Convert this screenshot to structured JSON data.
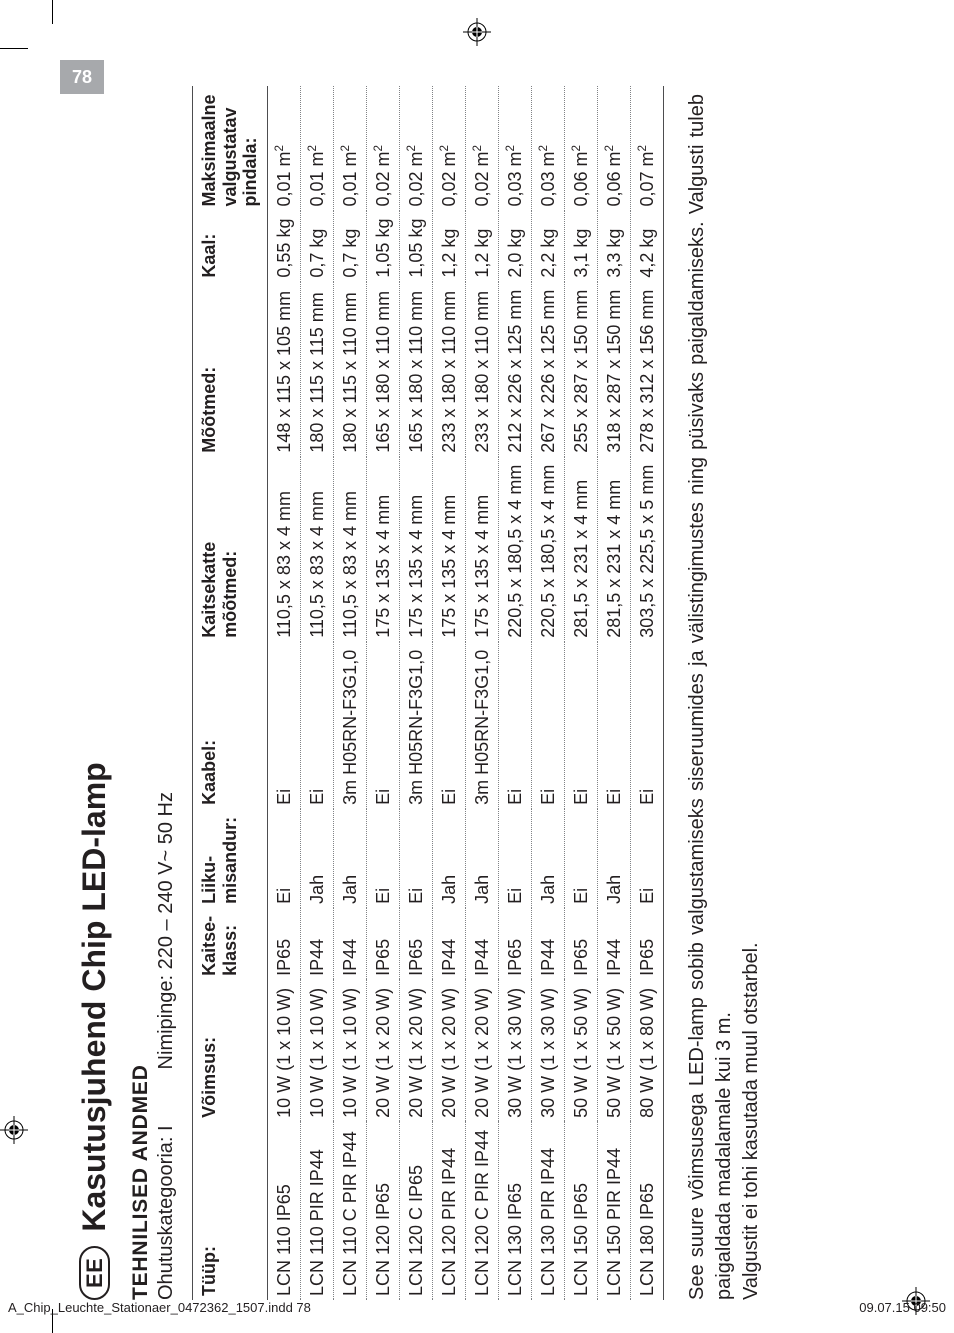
{
  "page_number": "78",
  "footer_left": "A_Chip_Leuchte_Stationaer_0472362_1507.indd   78",
  "footer_right": "09.07.15   09:50",
  "lang_code": "EE",
  "title": "Kasutusjuhend Chip LED-lamp",
  "section_heading": "TEHNILISED ANDMED",
  "safety_label": "Ohutuskategooria: I",
  "voltage_label": "Nimipinge: 220 – 240 V~ 50 Hz",
  "columns": {
    "type": "Tüüp:",
    "power": "Võimsus:",
    "ip": "Kaitse-\nklass:",
    "motion": "Liiku-\nmisandur:",
    "cable": "Kaabel:",
    "cover": "Kaitsekatte\nmõõtmed:",
    "dim": "Mõõtmed:",
    "weight": "Kaal:",
    "area": "Maksimaalne\nvalgustatav\npindala:"
  },
  "rows": [
    {
      "type": "LCN 110 IP65",
      "power": "10 W (1 x 10 W)",
      "ip": "IP65",
      "motion": "Ei",
      "cable": "Ei",
      "cover": "110,5 x 83 x 4 mm",
      "dim": "148 x 115 x 105 mm",
      "weight": "0,55 kg",
      "area": "0,01 m²"
    },
    {
      "type": "LCN 110 PIR IP44",
      "power": "10 W (1 x 10 W)",
      "ip": "IP44",
      "motion": "Jah",
      "cable": "Ei",
      "cover": "110,5 x 83 x 4 mm",
      "dim": "180 x 115 x 115 mm",
      "weight": "0,7 kg",
      "area": "0,01 m²"
    },
    {
      "type": "LCN 110 C PIR IP44",
      "power": "10 W (1 x 10 W)",
      "ip": "IP44",
      "motion": "Jah",
      "cable": "3m H05RN-F3G1,0",
      "cover": "110,5 x 83 x 4 mm",
      "dim": "180 x 115 x 110 mm",
      "weight": "0,7 kg",
      "area": "0,01 m²"
    },
    {
      "type": "LCN 120 IP65",
      "power": "20 W (1 x 20 W)",
      "ip": "IP65",
      "motion": "Ei",
      "cable": "Ei",
      "cover": "175 x 135 x 4 mm",
      "dim": "165 x 180 x 110 mm",
      "weight": "1,05 kg",
      "area": "0,02 m²"
    },
    {
      "type": "LCN 120 C IP65",
      "power": "20 W (1 x 20 W)",
      "ip": "IP65",
      "motion": "Ei",
      "cable": "3m H05RN-F3G1,0",
      "cover": "175 x 135 x 4 mm",
      "dim": "165 x 180 x 110 mm",
      "weight": "1,05 kg",
      "area": "0,02 m²"
    },
    {
      "type": "LCN 120 PIR IP44",
      "power": "20 W (1 x 20 W)",
      "ip": "IP44",
      "motion": "Jah",
      "cable": "Ei",
      "cover": "175 x 135 x 4 mm",
      "dim": "233 x 180 x 110 mm",
      "weight": "1,2 kg",
      "area": "0,02 m²"
    },
    {
      "type": "LCN 120 C PIR IP44",
      "power": "20 W (1 x 20 W)",
      "ip": "IP44",
      "motion": "Jah",
      "cable": "3m H05RN-F3G1,0",
      "cover": "175 x 135 x 4 mm",
      "dim": "233 x 180 x 110 mm",
      "weight": "1,2 kg",
      "area": "0,02 m²"
    },
    {
      "type": "LCN 130 IP65",
      "power": "30 W (1 x 30 W)",
      "ip": "IP65",
      "motion": "Ei",
      "cable": "Ei",
      "cover": "220,5 x 180,5 x 4 mm",
      "dim": "212 x 226 x 125 mm",
      "weight": "2,0 kg",
      "area": "0,03 m²"
    },
    {
      "type": "LCN 130 PIR IP44",
      "power": "30 W (1 x 30 W)",
      "ip": "IP44",
      "motion": "Jah",
      "cable": "Ei",
      "cover": "220,5 x 180,5 x 4 mm",
      "dim": "267 x 226 x 125 mm",
      "weight": "2,2 kg",
      "area": "0,03 m²"
    },
    {
      "type": "LCN 150 IP65",
      "power": "50 W (1 x 50 W)",
      "ip": "IP65",
      "motion": "Ei",
      "cable": "Ei",
      "cover": "281,5 x 231 x 4 mm",
      "dim": "255 x 287 x 150 mm",
      "weight": "3,1 kg",
      "area": "0,06 m²"
    },
    {
      "type": "LCN 150 PIR IP44",
      "power": "50 W (1 x 50 W)",
      "ip": "IP44",
      "motion": "Jah",
      "cable": "Ei",
      "cover": "281,5 x 231 x 4 mm",
      "dim": "318 x 287 x 150 mm",
      "weight": "3,3 kg",
      "area": "0,06 m²"
    },
    {
      "type": "LCN 180 IP65",
      "power": "80 W (1 x 80 W)",
      "ip": "IP65",
      "motion": "Ei",
      "cable": "Ei",
      "cover": "303,5 x 225,5 x 5 mm",
      "dim": "278 x 312 x 156 mm",
      "weight": "4,2 kg",
      "area": "0,07 m²"
    }
  ],
  "note": "See suure võimsusega LED-lamp sobib valgustamiseks siseruumides ja välistingimustes ning püsivaks paigaldamiseks. Valgusti tuleb paigaldada madalamale kui 3 m.\nValgustit ei tohi kasutada muul otstarbel."
}
